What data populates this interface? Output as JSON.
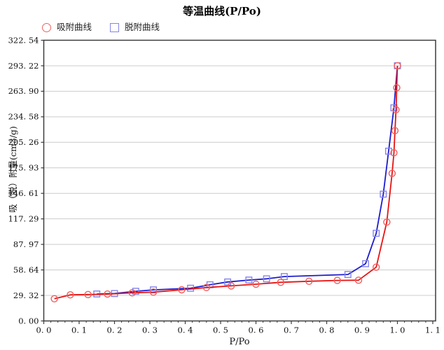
{
  "title": "等温曲线(P/Po)",
  "chart_data": {
    "type": "line",
    "title": "等温曲线(P/Po)",
    "xlabel": "P/Po",
    "ylabel": "吸（脱）附量(cm3/g)",
    "xlim": [
      0,
      1.11
    ],
    "ylim": [
      0,
      322.54
    ],
    "grid": "horizontal-only",
    "legend_position": "top-left",
    "background_color": "#ffffff",
    "gridline_color": "#cccccc",
    "border_color": "#3c3c3c",
    "x_ticks": [
      0.0,
      0.1,
      0.2,
      0.3,
      0.4,
      0.5,
      0.6,
      0.7,
      0.8,
      0.9,
      1.0,
      1.1
    ],
    "x_tick_labels": [
      "0. 0",
      "0. 1",
      "0. 2",
      "0. 3",
      "0. 4",
      "0. 5",
      "0. 6",
      "0. 7",
      "0. 8",
      "0. 9",
      "1. 0",
      "1. 1"
    ],
    "x_minor_tick_step": 0.02,
    "y_ticks": [
      0.0,
      29.32,
      58.64,
      87.97,
      117.29,
      146.61,
      175.93,
      205.26,
      234.58,
      263.9,
      293.22,
      322.54
    ],
    "y_tick_labels": [
      "0. 00",
      "29. 32",
      "58. 64",
      "87. 97",
      "117. 29",
      "146. 61",
      "175. 93",
      "205. 26",
      "234. 58",
      "263. 90",
      "293. 22",
      "322. 54"
    ],
    "series": [
      {
        "name": "吸附曲线",
        "marker": "circle",
        "line_color": "#e81212",
        "marker_color": "#ef5f5f",
        "points": [
          [
            0.03,
            25.5
          ],
          [
            0.075,
            30.0
          ],
          [
            0.125,
            30.3
          ],
          [
            0.18,
            30.9
          ],
          [
            0.25,
            32.3
          ],
          [
            0.31,
            33.1
          ],
          [
            0.39,
            35.8
          ],
          [
            0.46,
            38.4
          ],
          [
            0.53,
            40.3
          ],
          [
            0.6,
            42.2
          ],
          [
            0.67,
            44.4
          ],
          [
            0.75,
            45.6
          ],
          [
            0.83,
            46.6
          ],
          [
            0.89,
            46.8
          ],
          [
            0.94,
            61.8
          ],
          [
            0.97,
            113.6
          ],
          [
            0.985,
            169.6
          ],
          [
            0.99,
            193.2
          ],
          [
            0.993,
            218.6
          ],
          [
            0.996,
            242.7
          ],
          [
            0.998,
            268.0
          ],
          [
            1.0,
            293.22
          ]
        ]
      },
      {
        "name": "脱附曲线",
        "marker": "square",
        "line_color": "#1c1ccf",
        "marker_color": "#8585ea",
        "points": [
          [
            0.15,
            31.0
          ],
          [
            0.2,
            31.5
          ],
          [
            0.26,
            34.1
          ],
          [
            0.31,
            35.7
          ],
          [
            0.415,
            37.6
          ],
          [
            0.47,
            41.6
          ],
          [
            0.52,
            44.8
          ],
          [
            0.58,
            47.0
          ],
          [
            0.63,
            48.4
          ],
          [
            0.68,
            51.0
          ],
          [
            0.86,
            53.4
          ],
          [
            0.91,
            65.8
          ],
          [
            0.94,
            100.7
          ],
          [
            0.96,
            145.7
          ],
          [
            0.975,
            195.1
          ],
          [
            0.99,
            244.9
          ],
          [
            1.0,
            293.22
          ]
        ]
      }
    ]
  }
}
